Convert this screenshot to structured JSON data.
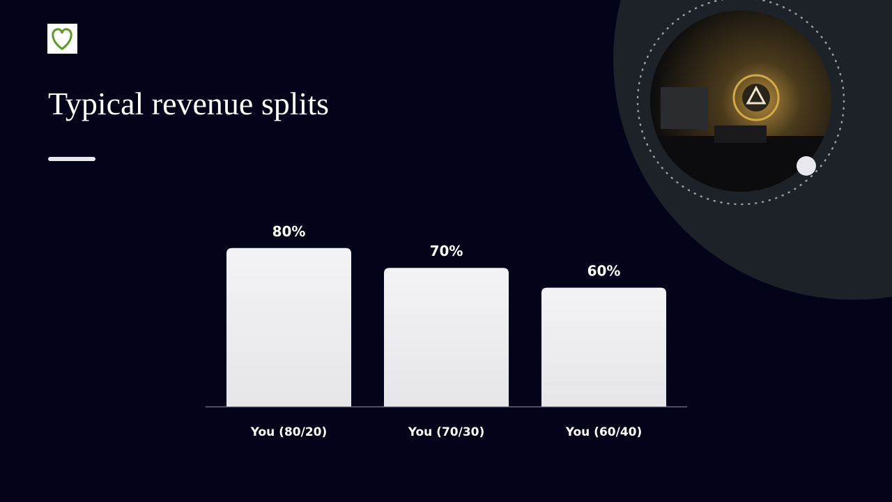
{
  "chart_data": {
    "type": "bar",
    "title": "Typical revenue splits",
    "categories": [
      "You (80/20)",
      "You (70/30)",
      "You (60/40)"
    ],
    "values": [
      80,
      70,
      60
    ],
    "value_labels": [
      "80%",
      "70%",
      "60%"
    ],
    "color": "#eeeef0"
  }
}
